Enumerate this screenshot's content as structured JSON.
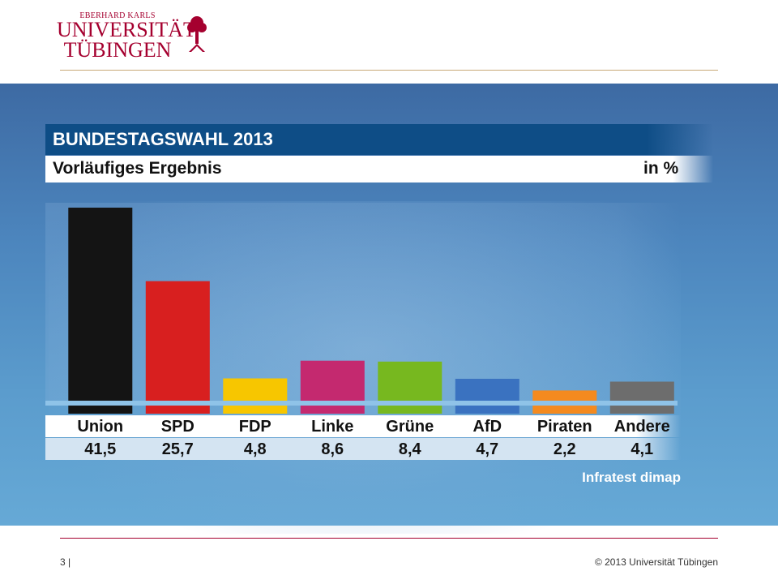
{
  "header": {
    "logo_small": "EBERHARD KARLS",
    "logo_line1": "UNIVERSITÄT",
    "logo_line2": "TÜBINGEN"
  },
  "slide": {
    "title": "BUNDESTAGSWAHL 2013",
    "subtitle": "Vorläufiges Ergebnis",
    "unit": "in %",
    "source": "Infratest dimap"
  },
  "chart_data": {
    "type": "bar",
    "title": "BUNDESTAGSWAHL 2013",
    "subtitle": "Vorläufiges Ergebnis",
    "ylabel": "in %",
    "categories": [
      "Union",
      "SPD",
      "FDP",
      "Linke",
      "Grüne",
      "AfD",
      "Piraten",
      "Andere"
    ],
    "values": [
      41.5,
      25.7,
      4.8,
      8.6,
      8.4,
      4.7,
      2.2,
      4.1
    ],
    "value_labels": [
      "41,5",
      "25,7",
      "4,8",
      "8,6",
      "8,4",
      "4,7",
      "2,2",
      "4,1"
    ],
    "colors": [
      "#141414",
      "#d81f1f",
      "#f7c600",
      "#c4296f",
      "#77b81f",
      "#3a72c0",
      "#f48a1f",
      "#6d6d6d"
    ],
    "ylim": [
      0,
      41.5
    ],
    "grid": false,
    "legend": "none"
  },
  "footer": {
    "page": "3 |",
    "copyright": "© 2013 Universität Tübingen"
  },
  "colors": {
    "brand": "#a5002f",
    "title_bar": "#0e4d86",
    "background": "#4c85bd"
  }
}
